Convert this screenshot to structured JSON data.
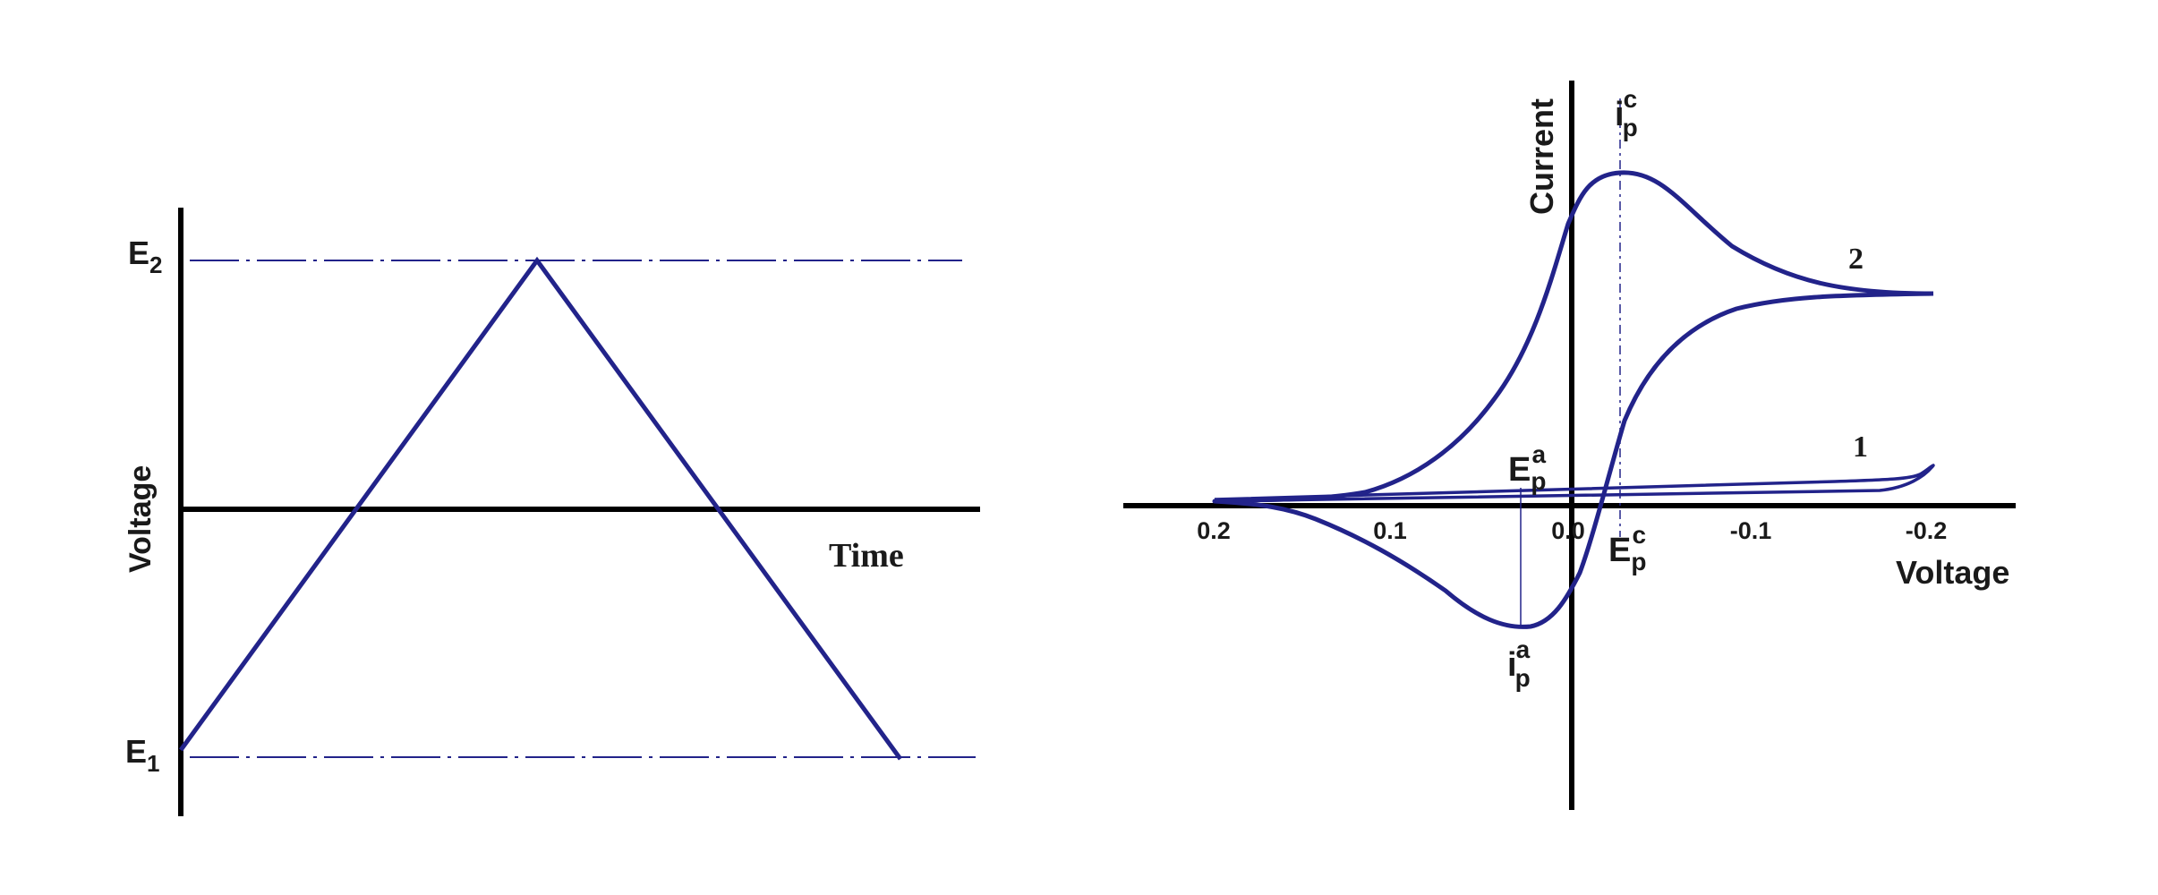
{
  "left_plot": {
    "y_axis_label": "Voltage",
    "x_axis_label": "Time",
    "upper_level": {
      "base": "E",
      "sub": "2"
    },
    "lower_level": {
      "base": "E",
      "sub": "1"
    }
  },
  "right_plot": {
    "y_axis_label": "Current",
    "x_axis_label": "Voltage",
    "tick_labels": [
      "0.2",
      "0.1",
      "0.0",
      "-0.1",
      "-0.2"
    ],
    "curve_labels": [
      "1",
      "2"
    ],
    "ipc": {
      "base": "i",
      "sub": "p",
      "sup": "c"
    },
    "ipa": {
      "base": "i",
      "sub": "p",
      "sup": "a"
    },
    "epc": {
      "base": "E",
      "sub": "p",
      "sup": "c"
    },
    "epa": {
      "base": "E",
      "sub": "p",
      "sup": "a"
    }
  },
  "colors": {
    "curve": "#22238a",
    "axis": "#000000"
  }
}
